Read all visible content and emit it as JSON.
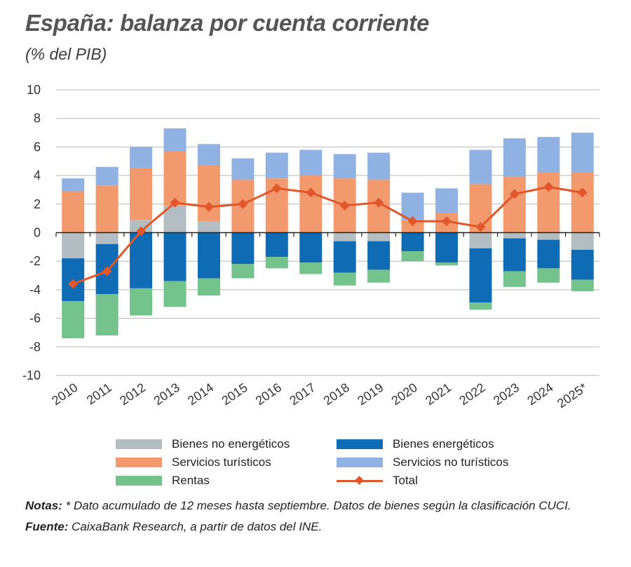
{
  "title": "España: balanza por cuenta corriente",
  "subtitle": "(% del PIB)",
  "colors": {
    "bienes_no_energeticos": "#b4bec2",
    "bienes_energeticos": "#0f6bb4",
    "servicios_turisticos": "#f29a6e",
    "servicios_no_turisticos": "#8fb2e2",
    "rentas": "#74c28c",
    "total": "#e2572a",
    "grid": "#b8b8b8",
    "axis": "#222222"
  },
  "legend": {
    "bienes_no_energeticos": "Bienes no energéticos",
    "bienes_energeticos": "Bienes energéticos",
    "servicios_turisticos": "Servicios turísticos",
    "servicios_no_turisticos": "Servicios no turísticos",
    "rentas": "Rentas",
    "total": "Total"
  },
  "notes": {
    "label": "Notas:",
    "text": " * Dato acumulado de 12 meses hasta septiembre. Datos de bienes según la clasificación CUCI."
  },
  "source": {
    "label": "Fuente:",
    "text": " CaixaBank Research, a partir de datos del INE."
  },
  "chart_data": {
    "type": "bar",
    "stacked": true,
    "title": "España: balanza por cuenta corriente",
    "ylabel": "% del PIB",
    "xlabel": "",
    "ylim": [
      -10,
      10
    ],
    "yticks": [
      10,
      8,
      6,
      4,
      2,
      0,
      -2,
      -4,
      -6,
      -8,
      -10
    ],
    "grid": true,
    "categories": [
      "2010",
      "2011",
      "2012",
      "2013",
      "2014",
      "2015",
      "2016",
      "2017",
      "2018",
      "2019",
      "2020",
      "2021",
      "2022",
      "2023",
      "2024",
      "2025*"
    ],
    "series": [
      {
        "name": "Bienes no energéticos",
        "key": "bienes_no_energeticos",
        "values": [
          -1.8,
          -0.8,
          0.9,
          1.9,
          0.8,
          0.0,
          0.0,
          0.0,
          -0.6,
          -0.6,
          0.0,
          0.0,
          -1.1,
          -0.4,
          -0.5,
          -1.2
        ]
      },
      {
        "name": "Bienes energéticos",
        "key": "bienes_energeticos",
        "values": [
          -3.0,
          -3.5,
          -3.9,
          -3.4,
          -3.2,
          -2.2,
          -1.7,
          -2.1,
          -2.2,
          -2.0,
          -1.3,
          -2.1,
          -3.8,
          -2.3,
          -2.0,
          -2.1
        ]
      },
      {
        "name": "Servicios turísticos",
        "key": "servicios_turisticos",
        "values": [
          2.9,
          3.3,
          3.6,
          3.8,
          3.9,
          3.7,
          3.8,
          4.0,
          3.8,
          3.7,
          0.9,
          1.4,
          3.4,
          3.9,
          4.2,
          4.2
        ]
      },
      {
        "name": "Servicios no turísticos",
        "key": "servicios_no_turisticos",
        "values": [
          0.9,
          1.3,
          1.5,
          1.6,
          1.5,
          1.5,
          1.8,
          1.8,
          1.7,
          1.9,
          1.9,
          1.7,
          2.4,
          2.7,
          2.5,
          2.8
        ]
      },
      {
        "name": "Rentas",
        "key": "rentas",
        "values": [
          -2.6,
          -2.9,
          -1.9,
          -1.8,
          -1.2,
          -1.0,
          -0.8,
          -0.8,
          -0.9,
          -0.9,
          -0.7,
          -0.2,
          -0.5,
          -1.1,
          -1.0,
          -0.8
        ]
      }
    ],
    "total": {
      "name": "Total",
      "type": "line",
      "values": [
        -3.6,
        -2.7,
        0.1,
        2.1,
        1.8,
        2.0,
        3.1,
        2.8,
        1.9,
        2.1,
        0.8,
        0.8,
        0.4,
        2.7,
        3.2,
        2.8
      ]
    }
  }
}
